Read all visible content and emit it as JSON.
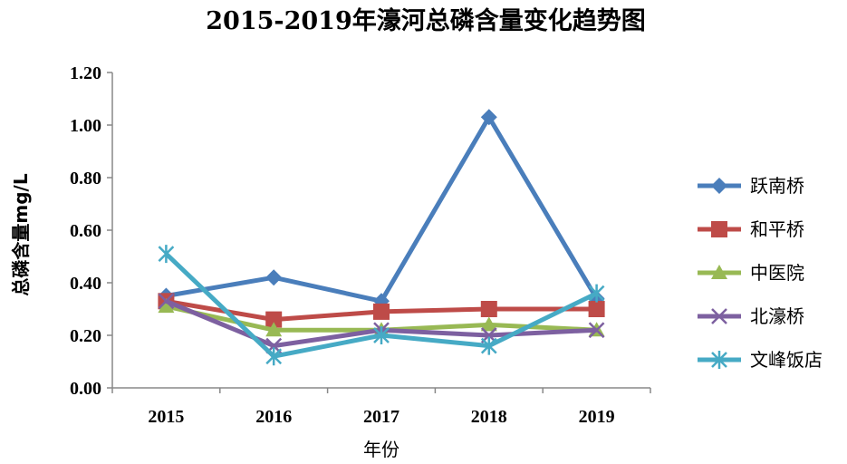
{
  "chart_data": {
    "type": "line",
    "title": "2015-2019年濠河总磷含量变化趋势图",
    "xlabel": "年份",
    "ylabel": "总磷含量mg/L",
    "categories": [
      "2015",
      "2016",
      "2017",
      "2018",
      "2019"
    ],
    "ylim": [
      0,
      1.2
    ],
    "yticks": [
      "0.00",
      "0.20",
      "0.40",
      "0.60",
      "0.80",
      "1.00",
      "1.20"
    ],
    "grid": false,
    "legend_position": "right",
    "series": [
      {
        "name": "跃南桥",
        "values": [
          0.35,
          0.42,
          0.33,
          1.03,
          0.34
        ],
        "color": "#4a7ebb",
        "marker": "diamond"
      },
      {
        "name": "和平桥",
        "values": [
          0.33,
          0.26,
          0.29,
          0.3,
          0.3
        ],
        "color": "#be4b48",
        "marker": "square"
      },
      {
        "name": "中医院",
        "values": [
          0.31,
          0.22,
          0.22,
          0.24,
          0.22
        ],
        "color": "#98b954",
        "marker": "triangle"
      },
      {
        "name": "北濠桥",
        "values": [
          0.33,
          0.16,
          0.22,
          0.2,
          0.22
        ],
        "color": "#7d60a0",
        "marker": "x"
      },
      {
        "name": "文峰饭店",
        "values": [
          0.51,
          0.12,
          0.2,
          0.16,
          0.36
        ],
        "color": "#46aac5",
        "marker": "star"
      }
    ]
  }
}
